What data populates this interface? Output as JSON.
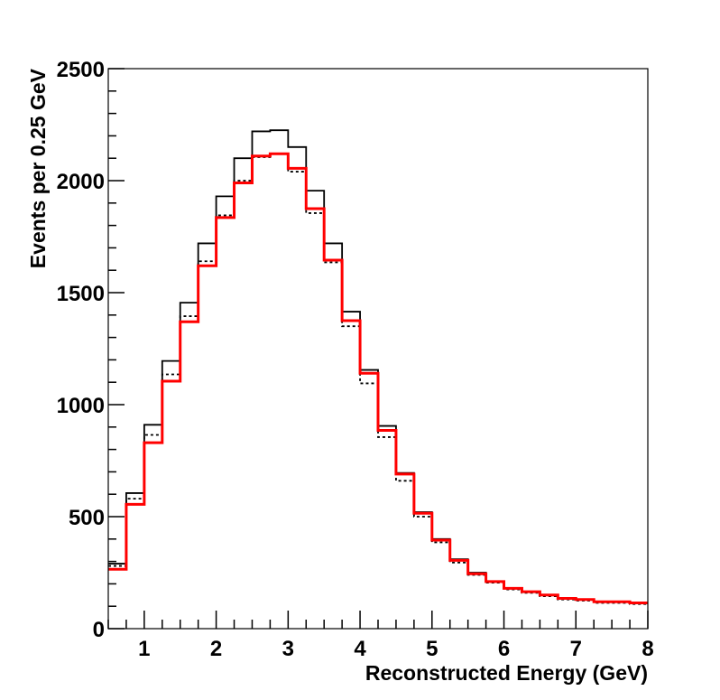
{
  "chart_data": {
    "type": "line",
    "title": "",
    "xlabel": "Reconstructed Energy (GeV)",
    "ylabel": "Events per 0.25 GeV",
    "xlim": [
      0.5,
      8
    ],
    "ylim": [
      0,
      2500
    ],
    "grid": false,
    "legend": "none",
    "bin_width": 0.25,
    "x_ticks": [
      1,
      2,
      3,
      4,
      5,
      6,
      7,
      8
    ],
    "y_ticks": [
      0,
      500,
      1000,
      1500,
      2000,
      2500
    ],
    "x_tick_labels": [
      "1",
      "2",
      "3",
      "4",
      "5",
      "6",
      "7",
      "8"
    ],
    "y_tick_labels": [
      "0",
      "500",
      "1000",
      "1500",
      "2000",
      "2500"
    ],
    "bin_edges": [
      0.5,
      0.75,
      1.0,
      1.25,
      1.5,
      1.75,
      2.0,
      2.25,
      2.5,
      2.75,
      3.0,
      3.25,
      3.5,
      3.75,
      4.0,
      4.25,
      4.5,
      4.75,
      5.0,
      5.25,
      5.5,
      5.75,
      6.0,
      6.25,
      6.5,
      6.75,
      7.0,
      7.25,
      7.5,
      7.75,
      8.0
    ],
    "series": [
      {
        "style": "solid-black",
        "color": "#000000",
        "values": [
          290,
          605,
          910,
          1195,
          1455,
          1720,
          1930,
          2100,
          2220,
          2225,
          2150,
          1955,
          1720,
          1415,
          1155,
          905,
          695,
          520,
          400,
          310,
          250,
          210,
          180,
          165,
          150,
          135,
          130,
          120,
          120,
          115
        ]
      },
      {
        "style": "dotted-black",
        "color": "#000000",
        "values": [
          280,
          580,
          865,
          1135,
          1395,
          1640,
          1845,
          2000,
          2105,
          2120,
          2040,
          1855,
          1635,
          1350,
          1095,
          855,
          660,
          500,
          385,
          295,
          240,
          205,
          175,
          160,
          145,
          130,
          125,
          115,
          115,
          110
        ]
      },
      {
        "style": "solid-red",
        "color": "#ff0000",
        "values": [
          265,
          555,
          830,
          1105,
          1370,
          1620,
          1835,
          1990,
          2110,
          2120,
          2055,
          1875,
          1645,
          1375,
          1140,
          885,
          690,
          515,
          395,
          305,
          245,
          210,
          180,
          165,
          150,
          135,
          130,
          120,
          120,
          115
        ]
      }
    ]
  }
}
